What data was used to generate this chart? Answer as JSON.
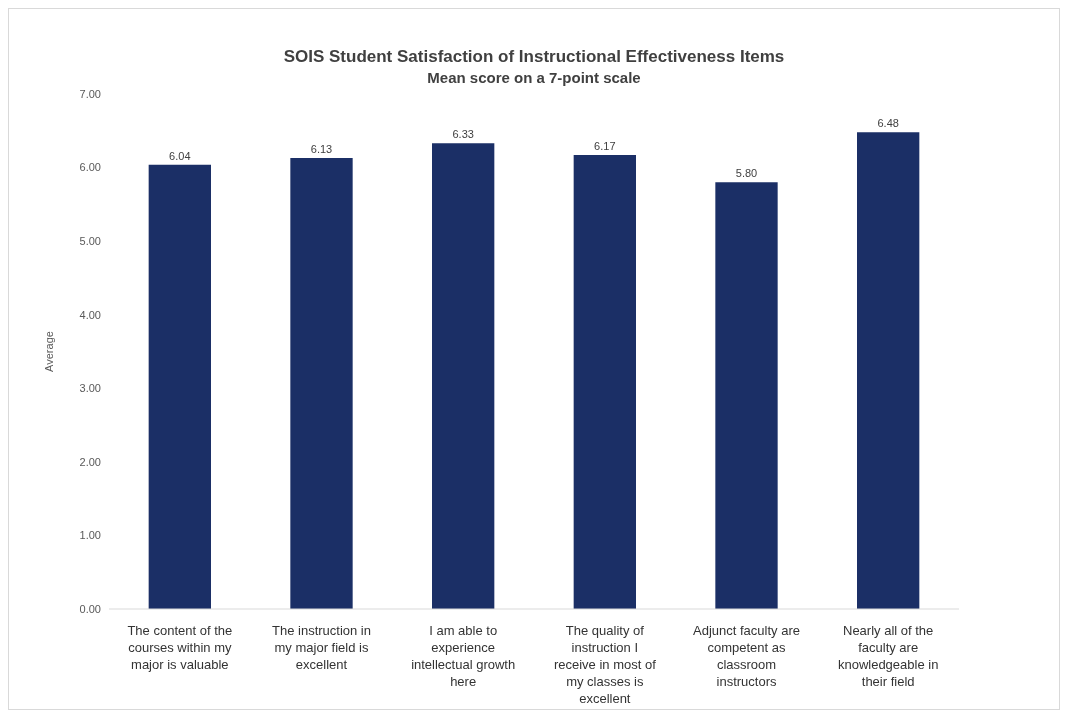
{
  "chart_data": {
    "type": "bar",
    "title": "SOIS Student Satisfaction of Instructional Effectiveness Items",
    "subtitle": "Mean score on a 7-point scale",
    "ylabel": "Average",
    "categories": [
      "The content of the courses within my major is valuable",
      "The instruction in my major field is excellent",
      "I am able to experience intellectual growth here",
      "The quality of instruction I receive in most of my classes is excellent",
      "Adjunct faculty are competent as classroom instructors",
      "Nearly all of the faculty are knowledgeable in their field"
    ],
    "values": [
      6.04,
      6.13,
      6.33,
      6.17,
      5.8,
      6.48
    ],
    "value_labels": [
      "6.04",
      "6.13",
      "6.33",
      "6.17",
      "5.80",
      "6.48"
    ],
    "color": "#1b2f66",
    "ylim": [
      0,
      7
    ],
    "yticks": [
      {
        "value": 0,
        "label": "0.00"
      },
      {
        "value": 1,
        "label": "1.00"
      },
      {
        "value": 2,
        "label": "2.00"
      },
      {
        "value": 3,
        "label": "3.00"
      },
      {
        "value": 4,
        "label": "4.00"
      },
      {
        "value": 5,
        "label": "5.00"
      },
      {
        "value": 6,
        "label": "6.00"
      },
      {
        "value": 7,
        "label": "7.00"
      }
    ],
    "grid": false,
    "legend": false
  }
}
